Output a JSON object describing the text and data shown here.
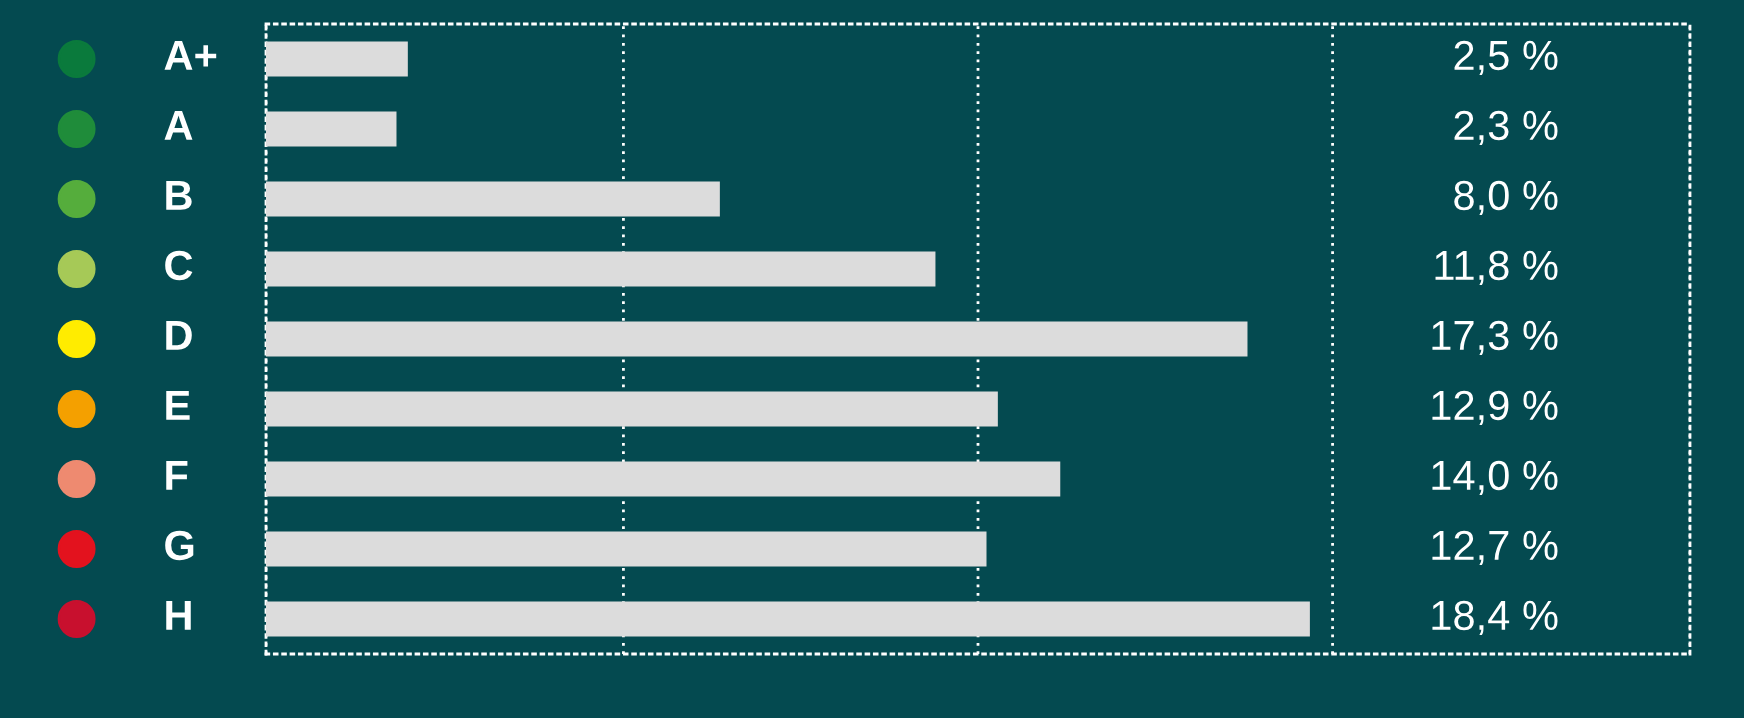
{
  "chart_data": {
    "type": "bar",
    "orientation": "horizontal",
    "categories": [
      "A+",
      "A",
      "B",
      "C",
      "D",
      "E",
      "F",
      "G",
      "H"
    ],
    "values": [
      2.5,
      2.3,
      8.0,
      11.8,
      17.3,
      12.9,
      14.0,
      12.7,
      18.4
    ],
    "value_labels": [
      "2,5 %",
      "2,3 %",
      "8,0 %",
      "11,8 %",
      "17,3 %",
      "12,9 %",
      "14,0 %",
      "12,7 %",
      "18,4 %"
    ],
    "color": "#dcdcdc",
    "xlim": [
      0,
      25.1
    ],
    "xticks": [
      {
        "value": 0,
        "label": null
      },
      {
        "value": 6.3,
        "label": null
      },
      {
        "value": 12.55,
        "label": null
      },
      {
        "value": 18.8,
        "label": null
      },
      {
        "value": 25.1,
        "label": null
      }
    ],
    "grid": "x",
    "legend": false
  }
}
